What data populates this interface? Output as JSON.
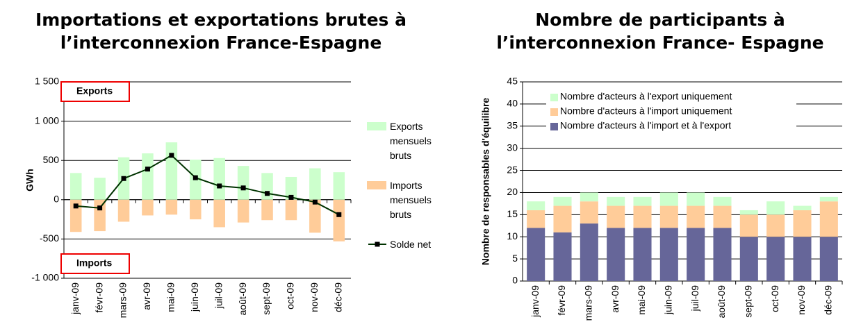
{
  "chart_data": [
    {
      "type": "combo",
      "title": [
        "Importations et exportations brutes à",
        "l’interconnexion France-Espagne"
      ],
      "ylabel": "GWh",
      "annotations": [
        "Exports",
        "Imports"
      ],
      "categories": [
        "janv-09",
        "févr-09",
        "mars-09",
        "avr-09",
        "mai-09",
        "juin-09",
        "juil-09",
        "août-09",
        "sept-09",
        "oct-09",
        "nov-09",
        "déc-09"
      ],
      "series": [
        {
          "name": "Exports mensuels bruts",
          "color": "#ccffcc",
          "kind": "bar",
          "values": [
            340,
            280,
            540,
            590,
            730,
            510,
            530,
            430,
            340,
            290,
            400,
            350
          ]
        },
        {
          "name": "Imports mensuels bruts",
          "color": "#ffcc99",
          "kind": "bar",
          "values": [
            -410,
            -400,
            -280,
            -200,
            -190,
            -250,
            -350,
            -290,
            -260,
            -260,
            -420,
            -530
          ]
        },
        {
          "name": "Solde net",
          "color": "#003300",
          "kind": "line",
          "values": [
            -80,
            -105,
            270,
            390,
            565,
            280,
            175,
            150,
            80,
            30,
            -30,
            -190
          ]
        }
      ],
      "ylim": [
        -1000,
        1500
      ],
      "yticks": [
        {
          "value": -1000,
          "label": "-1 000"
        },
        -500,
        0,
        500,
        {
          "value": 1000,
          "label": "1 000"
        },
        {
          "value": 1500,
          "label": "1 500"
        }
      ],
      "grid": true
    },
    {
      "type": "stacked",
      "title": [
        "Nombre de participants à",
        "l’interconnexion France- Espagne"
      ],
      "ylabel": "Nombre de responsables d'équilibre",
      "categories": [
        "janv-09",
        "févr-09",
        "mars-09",
        "avr-09",
        "mai-09",
        "juin-09",
        "juil-09",
        "août-09",
        "sept-09",
        "oct-09",
        "nov-09",
        "déc-09"
      ],
      "series": [
        {
          "name": "Nombre d'acteurs à l'import et à l'export",
          "color": "#666699",
          "values": [
            12,
            11,
            13,
            12,
            12,
            12,
            12,
            12,
            10,
            10,
            10,
            10
          ]
        },
        {
          "name": "Nombre d'acteurs à l'import uniquement",
          "color": "#ffcc99",
          "values": [
            4,
            6,
            5,
            5,
            5,
            5,
            5,
            5,
            5,
            5,
            6,
            8
          ]
        },
        {
          "name": "Nombre d'acteurs à l'export uniquement",
          "color": "#ccffcc",
          "values": [
            2,
            2,
            2,
            2,
            2,
            3,
            3,
            2,
            1,
            3,
            1,
            1
          ]
        }
      ],
      "ylim": [
        0,
        45
      ],
      "yticks": [
        0,
        5,
        10,
        15,
        20,
        25,
        30,
        35,
        40,
        45
      ],
      "grid": true
    }
  ]
}
